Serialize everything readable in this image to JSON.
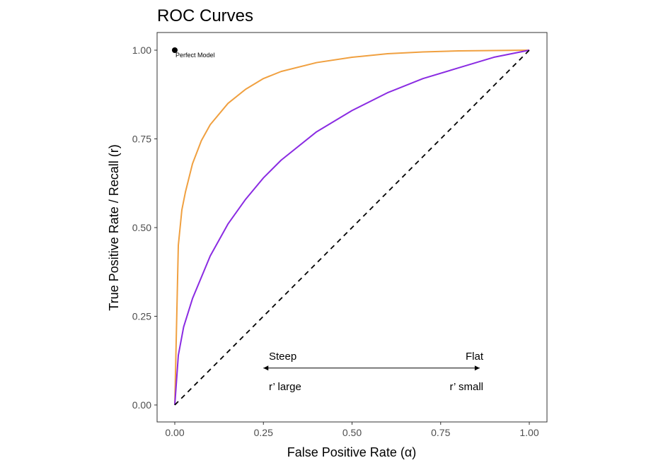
{
  "chart_data": {
    "type": "line",
    "title": "ROC Curves",
    "xlabel": "False Positive Rate (α)",
    "ylabel": "True Positive Rate / Recall (r)",
    "xlim": [
      0,
      1
    ],
    "ylim": [
      0,
      1
    ],
    "xticks": [
      "0.00",
      "0.25",
      "0.50",
      "0.75",
      "1.00"
    ],
    "yticks": [
      "0.00",
      "0.25",
      "0.50",
      "0.75",
      "1.00"
    ],
    "grid": false,
    "series": [
      {
        "color": "#F0A040",
        "x": [
          0,
          0.01,
          0.02,
          0.03,
          0.05,
          0.075,
          0.1,
          0.15,
          0.2,
          0.25,
          0.3,
          0.4,
          0.5,
          0.6,
          0.7,
          0.8,
          0.9,
          1.0
        ],
        "y": [
          0,
          0.45,
          0.55,
          0.6,
          0.68,
          0.745,
          0.79,
          0.85,
          0.89,
          0.92,
          0.94,
          0.965,
          0.98,
          0.99,
          0.995,
          0.998,
          0.999,
          1.0
        ]
      },
      {
        "color": "#8A2BE2",
        "x": [
          0,
          0.01,
          0.025,
          0.05,
          0.1,
          0.15,
          0.2,
          0.25,
          0.3,
          0.4,
          0.5,
          0.6,
          0.7,
          0.8,
          0.9,
          1.0
        ],
        "y": [
          0,
          0.14,
          0.22,
          0.3,
          0.42,
          0.51,
          0.58,
          0.64,
          0.69,
          0.77,
          0.83,
          0.88,
          0.92,
          0.95,
          0.98,
          1.0
        ]
      },
      {
        "color": "#000000",
        "line_style": "dashed",
        "x": [
          0,
          1
        ],
        "y": [
          0,
          1
        ]
      }
    ],
    "points": [
      {
        "x": 0,
        "y": 1,
        "label": "Perfect Model"
      }
    ],
    "annotations": {
      "steep": "Steep",
      "flat": "Flat",
      "r_large": "r’ large",
      "r_small": "r’ small",
      "arrow": {
        "x_from": 0.25,
        "x_to": 0.86,
        "y": 0.1,
        "direction": "both"
      }
    }
  }
}
